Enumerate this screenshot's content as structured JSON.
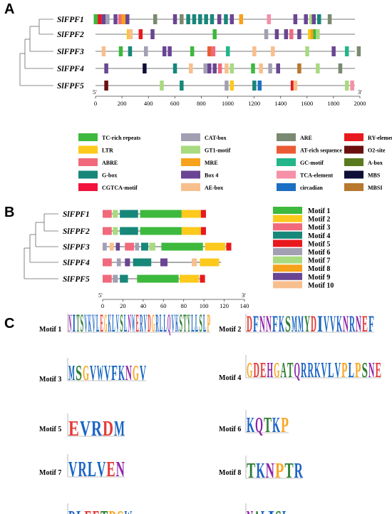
{
  "panels": {
    "a": "A",
    "b": "B",
    "c": "C"
  },
  "panel_a": {
    "genes": [
      "SlFPF1",
      "SlFPF2",
      "SlFPF3",
      "SlFPF4",
      "SlFPF5"
    ],
    "axis": {
      "start": "5'",
      "end": "3'",
      "ticks": [
        "0",
        "200",
        "400",
        "600",
        "800",
        "1000",
        "1200",
        "1400",
        "1600",
        "1800",
        "2000"
      ],
      "min": 0,
      "max": 2000
    },
    "elements": [
      {
        "label": "TC-rich repeats",
        "color": "#3DB93D"
      },
      {
        "label": "CAT-box",
        "color": "#A39FB3"
      },
      {
        "label": "ARE",
        "color": "#7A8A72"
      },
      {
        "label": "RY-element",
        "color": "#E8191E"
      },
      {
        "label": "LTR",
        "color": "#FCC91C"
      },
      {
        "label": "GT1-motif",
        "color": "#A8DA80"
      },
      {
        "label": "AT-rich sequence",
        "color": "#EA5B34"
      },
      {
        "label": "O2-site",
        "color": "#6B0F0F"
      },
      {
        "label": "ABRE",
        "color": "#F06A7C"
      },
      {
        "label": "MRE",
        "color": "#F6A21C"
      },
      {
        "label": "GC-motif",
        "color": "#22B68A"
      },
      {
        "label": "A-box",
        "color": "#5A7A1E"
      },
      {
        "label": "G-box",
        "color": "#17877A"
      },
      {
        "label": "Box 4",
        "color": "#6A4593"
      },
      {
        "label": "TCA-element",
        "color": "#F590A8"
      },
      {
        "label": "MBS",
        "color": "#0E0E36"
      },
      {
        "label": "CGTCA-motif",
        "color": "#F2143C"
      },
      {
        "label": "AE-box",
        "color": "#F8BF8E"
      },
      {
        "label": "circadian",
        "color": "#1C6FC2"
      },
      {
        "label": "MBSI",
        "color": "#B8782E"
      }
    ]
  },
  "panel_b": {
    "genes": [
      "SlFPF1",
      "SlFPF2",
      "SlFPF3",
      "SlFPF4",
      "SlFPF5"
    ],
    "axis": {
      "start": "5'",
      "end": "3'",
      "ticks": [
        "0",
        "20",
        "40",
        "60",
        "80",
        "100",
        "120",
        "140"
      ],
      "min": 0,
      "max": 140
    },
    "motifs": [
      {
        "label": "Motif 1",
        "color": "#3DB93D"
      },
      {
        "label": "Motif 2",
        "color": "#FCC91C"
      },
      {
        "label": "Motif 3",
        "color": "#F06A7C"
      },
      {
        "label": "Motif 4",
        "color": "#17877A"
      },
      {
        "label": "Motif 5",
        "color": "#E8191E"
      },
      {
        "label": "Motif 6",
        "color": "#A39FB3"
      },
      {
        "label": "Motif 7",
        "color": "#A8DA80"
      },
      {
        "label": "Motif 8",
        "color": "#F6A21C"
      },
      {
        "label": "Motif 9",
        "color": "#6A4593"
      },
      {
        "label": "Motif 10",
        "color": "#F8BF8E"
      }
    ]
  },
  "panel_c": {
    "logos": [
      {
        "title": "Motif 1",
        "seq": "NITSVKVLEGKLVSLNWERVDGRLLQVKSTYLLSLP"
      },
      {
        "title": "Motif 2",
        "seq": "DFNNFKSMMYDIVVKNRNEF"
      },
      {
        "title": "Motif 3",
        "seq": "MSGVWVFKNGV"
      },
      {
        "title": "Motif 4",
        "seq": "GDEHGATQRRKVLVPLPSNE"
      },
      {
        "title": "Motif 5",
        "seq": "EVRDM"
      },
      {
        "title": "Motif 6",
        "seq": "KQTKP"
      },
      {
        "title": "Motif 7",
        "seq": "VRLVEN"
      },
      {
        "title": "Motif 8",
        "seq": "TKNPTR"
      },
      {
        "title": "Motif 9",
        "seq": "RLEETPGW"
      },
      {
        "title": "Motif 10",
        "seq": "NALISL"
      }
    ]
  }
}
